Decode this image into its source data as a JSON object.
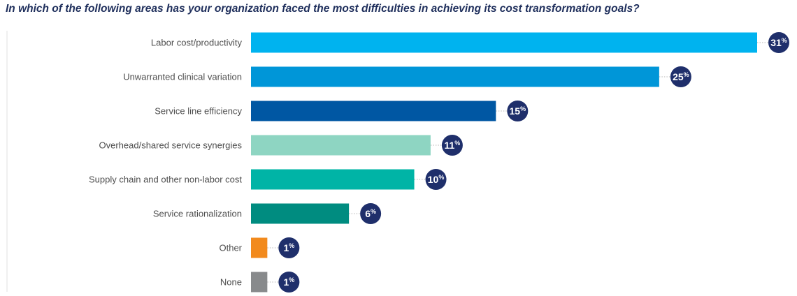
{
  "chart_data": {
    "type": "bar",
    "orientation": "horizontal",
    "title": "In which of the following areas has your organization faced the most difficulties in achieving its cost transformation goals?",
    "categories": [
      "Labor cost/productivity",
      "Unwarranted clinical variation",
      "Service line efficiency",
      "Overhead/shared service synergies",
      "Supply chain and other non-labor cost",
      "Service rationalization",
      "Other",
      "None"
    ],
    "values": [
      31,
      25,
      15,
      11,
      10,
      6,
      1,
      1
    ],
    "value_labels": [
      "31",
      "25",
      "15",
      "11",
      "10",
      "6",
      "1",
      "1"
    ],
    "value_suffix": "%",
    "bar_colors": [
      "#00b3ef",
      "#0096d8",
      "#0057a3",
      "#8ed5c2",
      "#00b4a6",
      "#008c80",
      "#f28a1d",
      "#888a8c"
    ],
    "badge_color": "#1f2f6b",
    "xlim": [
      0,
      31
    ],
    "grid": false,
    "legend": "none"
  }
}
